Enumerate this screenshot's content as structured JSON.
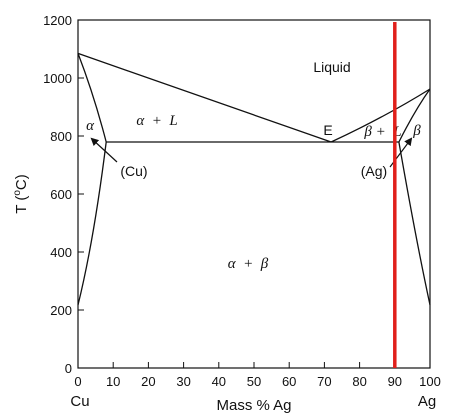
{
  "diagram": {
    "y_axis": {
      "label_prefix": "T (",
      "label_sup": "o",
      "label_suffix": "C)",
      "range": [
        0,
        1200
      ],
      "ticks": [
        "0",
        "200",
        "400",
        "600",
        "800",
        "1000",
        "1200"
      ]
    },
    "x_axis": {
      "label": "Mass % Ag",
      "range": [
        0,
        100
      ],
      "ticks": [
        "0",
        "10",
        "20",
        "30",
        "40",
        "50",
        "60",
        "70",
        "80",
        "90",
        "100"
      ],
      "left_element": "Cu",
      "right_element": "Ag"
    },
    "regions": {
      "liquid": "Liquid",
      "alpha": "α",
      "alpha_plus_L": "α  +  L",
      "eutectic": "E",
      "beta_plus_L": "β +  L",
      "beta": "β",
      "alpha_plus_beta": "α  +  β"
    },
    "arrows": {
      "cu": "(Cu)",
      "ag": "(Ag)"
    },
    "key_points": {
      "cu_melting": [
        0,
        1085
      ],
      "ag_melting": [
        100,
        962
      ],
      "eutectic": [
        71.9,
        779
      ],
      "alpha_max_solubility": [
        8.0,
        779
      ],
      "beta_max_solubility": [
        91.2,
        779
      ]
    },
    "marker_line": {
      "composition": 90,
      "color": "#e0201b"
    }
  }
}
